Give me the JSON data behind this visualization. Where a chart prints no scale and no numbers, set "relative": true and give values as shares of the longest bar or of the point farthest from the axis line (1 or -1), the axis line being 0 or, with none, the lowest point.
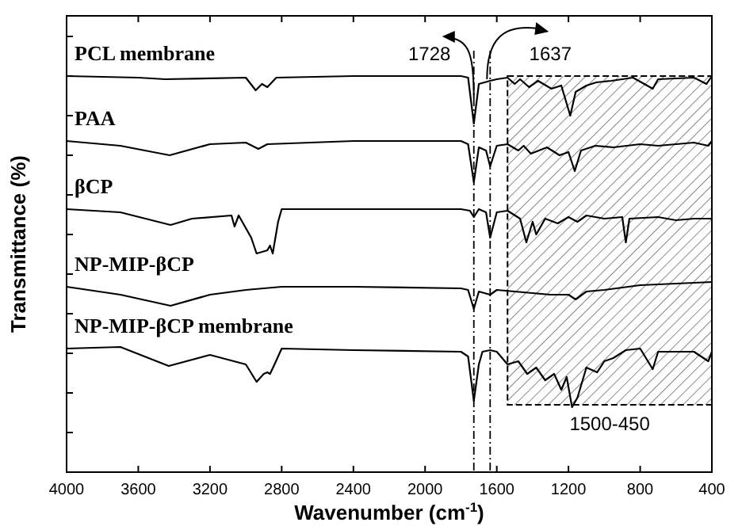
{
  "chart_data": {
    "type": "line",
    "relative": true,
    "xlabel": "Wavenumber (cm$^{-1}$)",
    "ylabel": "Transmittance (%)",
    "xlim": [
      4000,
      400
    ],
    "xticks": [
      4000,
      3600,
      3200,
      2800,
      2400,
      2000,
      1600,
      1200,
      800,
      400
    ],
    "tick_labels": "x",
    "grid": false,
    "legend": "top left",
    "marker": "none",
    "line_style": "solid",
    "ref_lines": [
      {
        "axis": "x",
        "value": 1728,
        "label": "1728",
        "line_style": "dashdot",
        "color": "#000000"
      },
      {
        "axis": "x",
        "value": 1637,
        "label": "1637",
        "line_style": "dashdot",
        "color": "#000000"
      }
    ],
    "bands": [
      {
        "axis": "x",
        "from": 1540,
        "to": 400,
        "label": "1500-450",
        "color": "#000000"
      }
    ],
    "series": [
      {
        "name": "PCL membrane",
        "color": "#000000",
        "x": [
          4000,
          3600,
          3450,
          3000,
          2945,
          2910,
          2880,
          2830,
          2400,
          1800,
          1760,
          1728,
          1700,
          1637,
          1600,
          1540,
          1500,
          1470,
          1420,
          1370,
          1295,
          1240,
          1190,
          1160,
          1100,
          1045,
          960,
          840,
          730,
          700,
          500,
          430,
          400
        ],
        "values": [
          1,
          0.996,
          0.992,
          0.996,
          0.964,
          0.98,
          0.972,
          0.996,
          1,
          1,
          0.996,
          0.88,
          0.98,
          0.988,
          0.992,
          0.996,
          0.98,
          0.992,
          0.972,
          0.988,
          0.968,
          0.976,
          0.9,
          0.96,
          0.976,
          0.984,
          0.988,
          0.996,
          0.968,
          0.992,
          0.996,
          0.98,
          1
        ]
      },
      {
        "name": "PAA",
        "color": "#000000",
        "x": [
          4000,
          3700,
          3425,
          3200,
          3000,
          2930,
          2880,
          2400,
          1800,
          1760,
          1728,
          1700,
          1660,
          1637,
          1600,
          1540,
          1480,
          1450,
          1410,
          1320,
          1250,
          1200,
          1165,
          1130,
          1050,
          950,
          800,
          700,
          500,
          420,
          400
        ],
        "values": [
          0.836,
          0.824,
          0.8,
          0.828,
          0.832,
          0.816,
          0.828,
          0.836,
          0.836,
          0.828,
          0.732,
          0.82,
          0.812,
          0.772,
          0.824,
          0.828,
          0.812,
          0.824,
          0.804,
          0.82,
          0.8,
          0.808,
          0.76,
          0.812,
          0.824,
          0.82,
          0.828,
          0.824,
          0.832,
          0.824,
          0.836
        ]
      },
      {
        "name": "βCP",
        "color": "#000000",
        "x": [
          4000,
          3700,
          3420,
          3300,
          3080,
          3063,
          3040,
          2970,
          2940,
          2880,
          2865,
          2850,
          2820,
          2800,
          2400,
          1800,
          1750,
          1728,
          1700,
          1660,
          1637,
          1600,
          1540,
          1470,
          1435,
          1400,
          1380,
          1330,
          1260,
          1200,
          1150,
          1100,
          1000,
          900,
          880,
          860,
          700,
          600,
          500,
          400
        ],
        "values": [
          0.664,
          0.656,
          0.624,
          0.64,
          0.648,
          0.62,
          0.648,
          0.592,
          0.552,
          0.56,
          0.572,
          0.552,
          0.632,
          0.664,
          0.664,
          0.664,
          0.66,
          0.644,
          0.664,
          0.656,
          0.592,
          0.656,
          0.66,
          0.64,
          0.58,
          0.632,
          0.6,
          0.64,
          0.628,
          0.644,
          0.632,
          0.648,
          0.64,
          0.644,
          0.58,
          0.64,
          0.644,
          0.636,
          0.64,
          0.64
        ]
      },
      {
        "name": "NP-MIP-βCP",
        "color": "#000000",
        "x": [
          4000,
          3700,
          3420,
          3200,
          3000,
          2800,
          2400,
          1800,
          1760,
          1728,
          1700,
          1637,
          1600,
          1500,
          1400,
          1300,
          1200,
          1160,
          1100,
          1000,
          800,
          600,
          400
        ],
        "values": [
          0.468,
          0.448,
          0.42,
          0.448,
          0.46,
          0.468,
          0.468,
          0.464,
          0.46,
          0.412,
          0.456,
          0.448,
          0.46,
          0.456,
          0.452,
          0.448,
          0.448,
          0.436,
          0.456,
          0.46,
          0.472,
          0.476,
          0.48
        ]
      },
      {
        "name": "NP-MIP-βCP membrane",
        "color": "#000000",
        "x": [
          4000,
          3700,
          3430,
          3200,
          3000,
          2940,
          2900,
          2880,
          2865,
          2840,
          2800,
          2400,
          1800,
          1760,
          1728,
          1700,
          1680,
          1637,
          1600,
          1540,
          1480,
          1430,
          1380,
          1330,
          1280,
          1240,
          1210,
          1180,
          1150,
          1100,
          1040,
          1000,
          950,
          880,
          800,
          730,
          700,
          500,
          420,
          400
        ],
        "values": [
          0.312,
          0.316,
          0.268,
          0.296,
          0.272,
          0.228,
          0.248,
          0.252,
          0.248,
          0.272,
          0.312,
          0.308,
          0.304,
          0.292,
          0.18,
          0.272,
          0.304,
          0.308,
          0.304,
          0.272,
          0.28,
          0.248,
          0.264,
          0.232,
          0.248,
          0.208,
          0.24,
          0.164,
          0.188,
          0.264,
          0.252,
          0.28,
          0.288,
          0.308,
          0.312,
          0.26,
          0.304,
          0.304,
          0.28,
          0.304
        ]
      }
    ]
  }
}
